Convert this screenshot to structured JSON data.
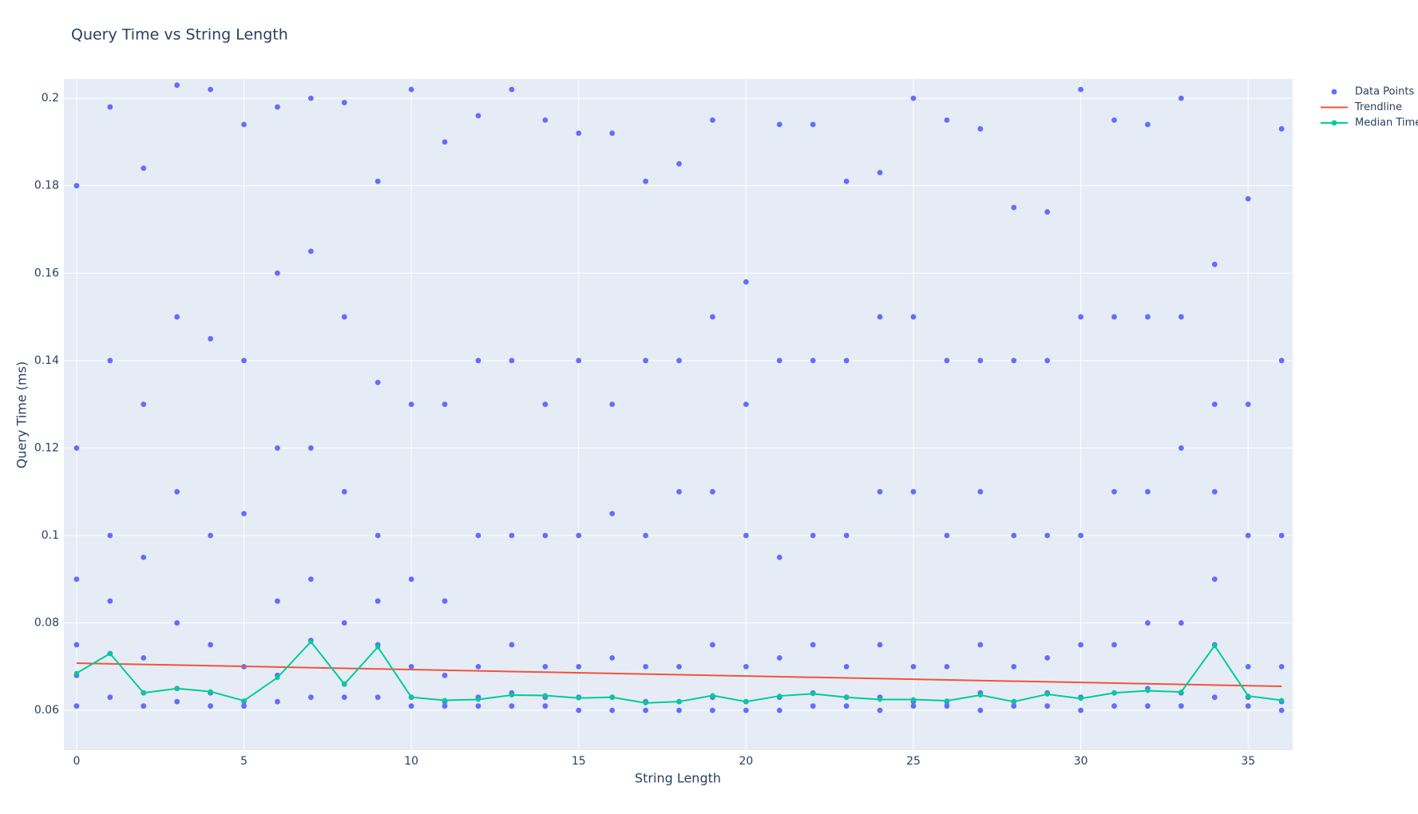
{
  "chart_data": {
    "type": "scatter",
    "title": "Query Time vs String Length",
    "x_label": "String Length",
    "y_label": "Query Time (ms)",
    "xlim": [
      -0.38,
      36.33
    ],
    "ylim": [
      0.0509,
      0.2044
    ],
    "xticks": [
      0,
      5,
      10,
      15,
      20,
      25,
      30,
      35
    ],
    "yticks": [
      0.06,
      0.08,
      0.1,
      0.12,
      0.14,
      0.16,
      0.18,
      0.2
    ],
    "grid": true,
    "legend": "top-right",
    "series": [
      {
        "name": "Data Points",
        "mode": "markers",
        "color": "#636efa",
        "x": [
          0,
          0,
          0,
          0,
          0,
          0,
          1,
          1,
          1,
          1,
          1,
          1,
          2,
          2,
          2,
          2,
          2,
          2,
          3,
          3,
          3,
          3,
          3,
          3,
          4,
          4,
          4,
          4,
          4,
          4,
          5,
          5,
          5,
          5,
          5,
          5,
          6,
          6,
          6,
          6,
          6,
          6,
          7,
          7,
          7,
          7,
          7,
          7,
          8,
          8,
          8,
          8,
          8,
          8,
          9,
          9,
          9,
          9,
          9,
          9,
          10,
          10,
          10,
          10,
          10,
          10,
          11,
          11,
          11,
          11,
          11,
          11,
          12,
          12,
          12,
          12,
          12,
          12,
          13,
          13,
          13,
          13,
          13,
          13,
          14,
          14,
          14,
          14,
          14,
          14,
          15,
          15,
          15,
          15,
          15,
          15,
          16,
          16,
          16,
          16,
          16,
          16,
          17,
          17,
          17,
          17,
          17,
          17,
          18,
          18,
          18,
          18,
          18,
          18,
          19,
          19,
          19,
          19,
          19,
          19,
          20,
          20,
          20,
          20,
          20,
          20,
          21,
          21,
          21,
          21,
          21,
          21,
          22,
          22,
          22,
          22,
          22,
          22,
          23,
          23,
          23,
          23,
          23,
          23,
          24,
          24,
          24,
          24,
          24,
          24,
          25,
          25,
          25,
          25,
          25,
          25,
          26,
          26,
          26,
          26,
          26,
          26,
          27,
          27,
          27,
          27,
          27,
          27,
          28,
          28,
          28,
          28,
          28,
          28,
          29,
          29,
          29,
          29,
          29,
          29,
          30,
          30,
          30,
          30,
          30,
          30,
          31,
          31,
          31,
          31,
          31,
          31,
          32,
          32,
          32,
          32,
          32,
          32,
          33,
          33,
          33,
          33,
          33,
          33,
          34,
          34,
          34,
          34,
          34,
          34,
          35,
          35,
          35,
          35,
          35,
          35,
          36,
          36,
          36,
          36,
          36,
          36
        ],
        "y": [
          0.061,
          0.068,
          0.075,
          0.09,
          0.12,
          0.18,
          0.063,
          0.073,
          0.085,
          0.1,
          0.14,
          0.198,
          0.061,
          0.064,
          0.072,
          0.095,
          0.13,
          0.184,
          0.062,
          0.065,
          0.08,
          0.11,
          0.15,
          0.203,
          0.061,
          0.064,
          0.075,
          0.1,
          0.145,
          0.202,
          0.061,
          0.062,
          0.07,
          0.105,
          0.14,
          0.194,
          0.062,
          0.068,
          0.085,
          0.12,
          0.16,
          0.198,
          0.063,
          0.076,
          0.09,
          0.12,
          0.165,
          0.2,
          0.063,
          0.066,
          0.08,
          0.11,
          0.15,
          0.199,
          0.063,
          0.075,
          0.085,
          0.1,
          0.135,
          0.181,
          0.061,
          0.063,
          0.07,
          0.09,
          0.13,
          0.202,
          0.061,
          0.062,
          0.068,
          0.085,
          0.13,
          0.19,
          0.061,
          0.063,
          0.07,
          0.1,
          0.14,
          0.196,
          0.061,
          0.064,
          0.075,
          0.1,
          0.14,
          0.202,
          0.061,
          0.063,
          0.07,
          0.1,
          0.13,
          0.195,
          0.06,
          0.063,
          0.07,
          0.1,
          0.14,
          0.192,
          0.06,
          0.063,
          0.072,
          0.105,
          0.13,
          0.192,
          0.06,
          0.062,
          0.07,
          0.1,
          0.14,
          0.181,
          0.06,
          0.062,
          0.07,
          0.11,
          0.14,
          0.185,
          0.06,
          0.063,
          0.075,
          0.11,
          0.15,
          0.195,
          0.06,
          0.062,
          0.07,
          0.1,
          0.13,
          0.158,
          0.06,
          0.063,
          0.072,
          0.095,
          0.14,
          0.194,
          0.061,
          0.064,
          0.075,
          0.1,
          0.14,
          0.194,
          0.061,
          0.063,
          0.07,
          0.1,
          0.14,
          0.181,
          0.06,
          0.063,
          0.075,
          0.11,
          0.15,
          0.183,
          0.061,
          0.062,
          0.07,
          0.11,
          0.15,
          0.2,
          0.061,
          0.062,
          0.07,
          0.1,
          0.14,
          0.195,
          0.06,
          0.064,
          0.075,
          0.11,
          0.14,
          0.193,
          0.061,
          0.062,
          0.07,
          0.1,
          0.14,
          0.175,
          0.061,
          0.064,
          0.072,
          0.1,
          0.14,
          0.174,
          0.06,
          0.063,
          0.075,
          0.1,
          0.15,
          0.202,
          0.061,
          0.064,
          0.075,
          0.11,
          0.15,
          0.195,
          0.061,
          0.065,
          0.08,
          0.11,
          0.15,
          0.194,
          0.061,
          0.064,
          0.08,
          0.12,
          0.15,
          0.2,
          0.063,
          0.075,
          0.09,
          0.11,
          0.13,
          0.162,
          0.061,
          0.063,
          0.07,
          0.1,
          0.13,
          0.177,
          0.06,
          0.062,
          0.07,
          0.1,
          0.14,
          0.193
        ]
      },
      {
        "name": "Trendline",
        "mode": "lines",
        "color": "#ef553b",
        "x": [
          0,
          36
        ],
        "y": [
          0.0708,
          0.0655
        ]
      },
      {
        "name": "Median Time",
        "mode": "lines+markers",
        "color": "#00cc96",
        "x": [
          0,
          1,
          2,
          3,
          4,
          5,
          6,
          7,
          8,
          9,
          10,
          11,
          12,
          13,
          14,
          15,
          16,
          17,
          18,
          19,
          20,
          21,
          22,
          23,
          24,
          25,
          26,
          27,
          28,
          29,
          30,
          31,
          32,
          33,
          34,
          35,
          36
        ],
        "y": [
          0.0685,
          0.073,
          0.064,
          0.065,
          0.0643,
          0.0622,
          0.0675,
          0.0757,
          0.066,
          0.0745,
          0.063,
          0.0623,
          0.0625,
          0.0635,
          0.0634,
          0.0628,
          0.063,
          0.0617,
          0.062,
          0.0634,
          0.062,
          0.0633,
          0.0638,
          0.063,
          0.0625,
          0.0625,
          0.0622,
          0.0635,
          0.062,
          0.0637,
          0.0627,
          0.064,
          0.0645,
          0.0642,
          0.0748,
          0.0633,
          0.0623
        ]
      }
    ]
  }
}
